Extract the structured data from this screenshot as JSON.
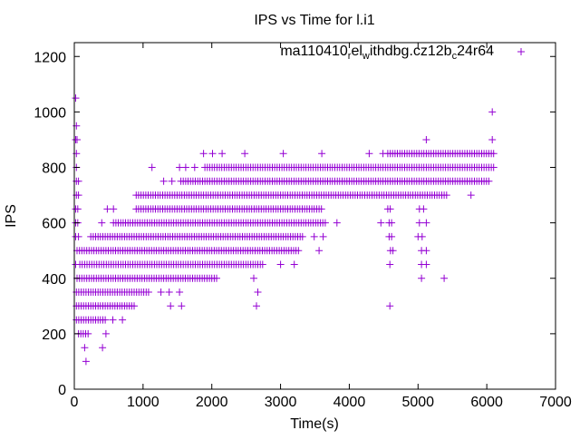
{
  "chart_data": {
    "type": "scatter",
    "title": "IPS vs Time for l.i1",
    "xlabel": "Time(s)",
    "ylabel": "IPS",
    "xlim": [
      0,
      7000
    ],
    "ylim": [
      0,
      1250
    ],
    "xticks": [
      0,
      1000,
      2000,
      3000,
      4000,
      5000,
      6000,
      7000
    ],
    "yticks": [
      0,
      200,
      400,
      600,
      800,
      1000,
      1200
    ],
    "grid": false,
    "legend": {
      "position": "top-right",
      "label_main": "ma110410",
      "sub1": "r",
      "mid1": "el",
      "sub2": "w",
      "mid2": "ithdbg.cz12b",
      "sub3": "c",
      "tail": "24r64"
    },
    "marker": "plus",
    "color": "#9400d3",
    "series": [
      {
        "name": "ma110410_rel_withdbg.cz12b_c24r64",
        "levels": [
          {
            "y": 1050,
            "ranges": [],
            "points": [
              20
            ]
          },
          {
            "y": 1000,
            "ranges": [],
            "points": [
              6080
            ]
          },
          {
            "y": 950,
            "ranges": [],
            "points": [
              30
            ]
          },
          {
            "y": 900,
            "ranges": [],
            "points": [
              20,
              40,
              5120,
              6080
            ]
          },
          {
            "y": 850,
            "ranges": [
              [
                4560,
                6100
              ]
            ],
            "points": [
              30,
              1880,
              2010,
              2150,
              2480,
              3040,
              3600,
              4290,
              4490
            ]
          },
          {
            "y": 800,
            "ranges": [
              [
                1900,
                6100
              ]
            ],
            "points": [
              30,
              1130,
              1530,
              1620,
              1750
            ]
          },
          {
            "y": 750,
            "ranges": [
              [
                1550,
                6060
              ]
            ],
            "points": [
              30,
              60,
              1300,
              1420
            ]
          },
          {
            "y": 700,
            "ranges": [
              [
                900,
                5440
              ]
            ],
            "points": [
              30,
              60,
              5770
            ]
          },
          {
            "y": 650,
            "ranges": [
              [
                900,
                3600
              ],
              [
                4560,
                4620
              ]
            ],
            "points": [
              20,
              50,
              480,
              570,
              5020,
              5080
            ]
          },
          {
            "y": 600,
            "ranges": [
              [
                570,
                3660
              ],
              [
                4580,
                4620
              ]
            ],
            "points": [
              20,
              50,
              400,
              3820,
              4460,
              5020,
              5120
            ]
          },
          {
            "y": 550,
            "ranges": [
              [
                240,
                3330
              ],
              [
                4580,
                4620
              ]
            ],
            "points": [
              20,
              60,
              3490,
              3620,
              5000,
              5060
            ]
          },
          {
            "y": 500,
            "ranges": [
              [
                40,
                3270
              ],
              [
                4600,
                4640
              ]
            ],
            "points": [
              3560,
              5050,
              5120
            ]
          },
          {
            "y": 450,
            "ranges": [
              [
                80,
                2740
              ]
            ],
            "points": [
              20,
              3000,
              3200,
              4590,
              5050,
              5120
            ]
          },
          {
            "y": 400,
            "ranges": [
              [
                40,
                2080
              ]
            ],
            "points": [
              2610,
              5050,
              5380
            ]
          },
          {
            "y": 350,
            "ranges": [
              [
                30,
                1100
              ]
            ],
            "points": [
              1260,
              1380,
              1530,
              2670
            ]
          },
          {
            "y": 300,
            "ranges": [
              [
                30,
                900
              ]
            ],
            "points": [
              1400,
              1560,
              2650,
              4590
            ]
          },
          {
            "y": 250,
            "ranges": [
              [
                30,
                450
              ]
            ],
            "points": [
              560,
              700
            ]
          },
          {
            "y": 200,
            "ranges": [
              [
                60,
                230
              ]
            ],
            "points": [
              460
            ]
          },
          {
            "y": 150,
            "ranges": [],
            "points": [
              150,
              410
            ]
          },
          {
            "y": 100,
            "ranges": [],
            "points": [
              170
            ]
          }
        ]
      }
    ]
  }
}
